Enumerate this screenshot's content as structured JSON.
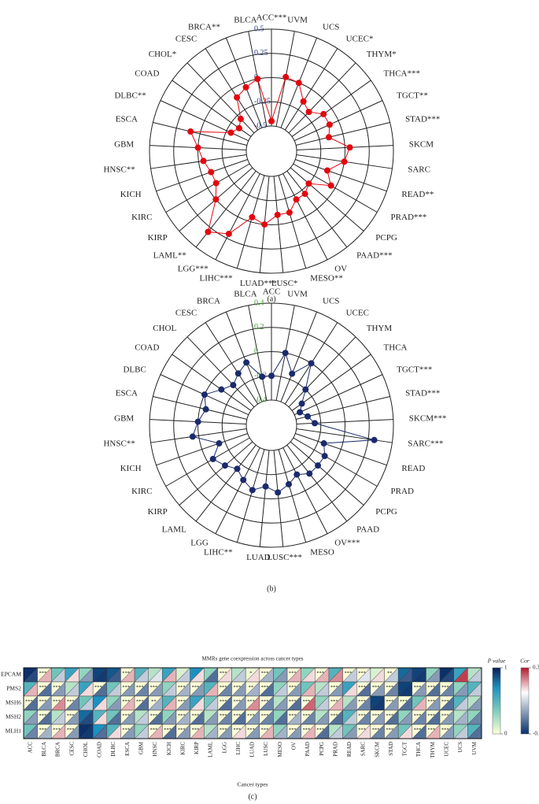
{
  "chart_data": [
    {
      "type": "radar",
      "panel_label": "(a)",
      "color": "#e3060f",
      "tick_color": "#2b3a8c",
      "categories": [
        "ACC***",
        "UVM",
        "UCS",
        "UCEC*",
        "THYM*",
        "THCA***",
        "TGCT**",
        "STAD***",
        "SKCM",
        "SARC",
        "READ**",
        "PRAD***",
        "PCPG",
        "PAAD***",
        "OV",
        "MESO**",
        "LUSC*",
        "LUAD***",
        "LIHC***",
        "LGG***",
        "LAML**",
        "KIRP",
        "KIRC",
        "KICH",
        "HNSC**",
        "GBM",
        "ESCA",
        "DLBC**",
        "COAD",
        "CHOL*",
        "CESC",
        "BRCA**",
        "BLCA"
      ],
      "values": [
        -0.45,
        0.02,
        0.0,
        -0.15,
        -0.2,
        -0.1,
        -0.1,
        -0.15,
        0.05,
        0.0,
        -0.15,
        -0.05,
        -0.25,
        -0.2,
        -0.2,
        -0.1,
        -0.1,
        0.0,
        -0.05,
        0.2,
        0.3,
        0.0,
        -0.1,
        -0.1,
        -0.05,
        0.0,
        0.1,
        -0.3,
        -0.35,
        -0.3,
        -0.1,
        -0.05,
        0.0
      ],
      "rlim": [
        -0.5,
        0.5
      ],
      "rticks": [
        -0.5,
        -0.25,
        0,
        0.25,
        0.5
      ]
    },
    {
      "type": "radar",
      "panel_label": "(b)",
      "color": "#1a2a6c",
      "tick_color": "#3a9a2a",
      "categories": [
        "ACC",
        "UVM",
        "UCS",
        "UCEC",
        "THYM",
        "THCA",
        "TGCT***",
        "STAD***",
        "SKCM***",
        "SARC***",
        "READ",
        "PRAD",
        "PCPG",
        "PAAD",
        "OV***",
        "MESO",
        "LUSC***",
        "LUAD",
        "LIHC**",
        "LGG",
        "LAML",
        "KIRP",
        "KIRC",
        "KICH",
        "HNSC**",
        "GBM",
        "ESCA",
        "DLBC",
        "COAD",
        "CHOL",
        "CESC",
        "BRCA",
        "BLCA"
      ],
      "values": [
        -0.2,
        0.0,
        -0.15,
        0.0,
        -0.2,
        -0.3,
        -0.35,
        -0.3,
        -0.25,
        0.25,
        -0.15,
        -0.1,
        -0.1,
        -0.1,
        -0.15,
        -0.1,
        -0.05,
        -0.1,
        -0.05,
        -0.1,
        -0.15,
        -0.1,
        -0.05,
        -0.15,
        0.05,
        0.0,
        -0.05,
        0.0,
        -0.1,
        -0.15,
        -0.1,
        -0.05,
        -0.2
      ],
      "rlim": [
        -0.4,
        0.4
      ],
      "rticks": [
        -0.4,
        -0.2,
        0,
        0.2,
        0.4
      ]
    },
    {
      "type": "heatmap",
      "panel_label": "(c)",
      "title": "MMRs gene coexpression across cancer types",
      "xlabel": "Cancer types",
      "categories": [
        "ACC",
        "BLCA",
        "BRCA",
        "CESC",
        "CHOL",
        "COAD",
        "DLBC",
        "ESCA",
        "GBM",
        "HNSC",
        "KICH",
        "KIRC",
        "KIRP",
        "LAML",
        "LGG",
        "LIHC",
        "LUAD",
        "LUSC",
        "MESO",
        "OV",
        "PAAD",
        "PCPG",
        "PRAD",
        "READ",
        "SARC",
        "SKCM",
        "STAD",
        "TGCT",
        "THCA",
        "THYM",
        "UCEC",
        "UCS",
        "UVM"
      ],
      "rows": [
        "EPCAM",
        "PMS2",
        "MSH6",
        "MSH2",
        "MLH1"
      ],
      "pvalue_title": "P value",
      "pvalue_lim": [
        0,
        1
      ],
      "pvalue_ticks": [
        0,
        1
      ],
      "cor_title": "Cor",
      "cor_lim": [
        -0.5,
        0.3
      ],
      "cor_ticks": [
        -0.5,
        0.3
      ],
      "pvalue": [
        [
          0.95,
          0.01,
          0.4,
          0.6,
          0.3,
          0.9,
          0.85,
          0.01,
          0.5,
          0.2,
          0.6,
          0.1,
          0.7,
          0.3,
          0.01,
          0.2,
          0.05,
          0.01,
          0.4,
          0.01,
          0.3,
          0.01,
          0.5,
          0.01,
          0.01,
          0.1,
          0.02,
          0.8,
          0.9,
          0.3,
          0.95,
          0.6,
          0.2
        ],
        [
          0.5,
          0.01,
          0.01,
          0.2,
          0.6,
          0.01,
          0.4,
          0.01,
          0.01,
          0.01,
          0.3,
          0.01,
          0.01,
          0.5,
          0.01,
          0.01,
          0.02,
          0.01,
          0.3,
          0.01,
          0.4,
          0.2,
          0.01,
          0.6,
          0.01,
          0.01,
          0.01,
          0.9,
          0.01,
          0.01,
          0.01,
          0.3,
          0.5
        ],
        [
          0.01,
          0.01,
          0.01,
          0.01,
          0.4,
          0.7,
          0.3,
          0.01,
          0.01,
          0.02,
          0.5,
          0.01,
          0.6,
          0.4,
          0.01,
          0.01,
          0.01,
          0.01,
          0.2,
          0.01,
          0.01,
          0.3,
          0.01,
          0.2,
          0.01,
          0.9,
          0.01,
          0.01,
          0.4,
          0.01,
          0.01,
          0.5,
          0.2
        ],
        [
          0.3,
          0.01,
          0.2,
          0.01,
          0.8,
          0.5,
          0.4,
          0.01,
          0.2,
          0.01,
          0.3,
          0.01,
          0.01,
          0.2,
          0.01,
          0.01,
          0.01,
          0.01,
          0.3,
          0.01,
          0.01,
          0.2,
          0.01,
          0.5,
          0.01,
          0.01,
          0.01,
          0.3,
          0.01,
          0.01,
          0.01,
          0.2,
          0.3
        ],
        [
          0.4,
          0.01,
          0.01,
          0.01,
          0.95,
          0.7,
          0.5,
          0.01,
          0.3,
          0.01,
          0.01,
          0.01,
          0.01,
          0.2,
          0.01,
          0.01,
          0.01,
          0.01,
          0.3,
          0.01,
          0.01,
          0.01,
          0.2,
          0.4,
          0.01,
          0.01,
          0.01,
          0.4,
          0.01,
          0.01,
          0.01,
          0.3,
          0.5
        ]
      ],
      "cor": [
        [
          -0.4,
          0.1,
          -0.1,
          0.05,
          -0.2,
          -0.45,
          -0.35,
          0.1,
          -0.1,
          -0.05,
          0.1,
          -0.1,
          0.05,
          -0.3,
          0.05,
          -0.1,
          0.05,
          -0.15,
          -0.2,
          0.1,
          0.05,
          0.1,
          0.15,
          -0.1,
          -0.05,
          0.05,
          -0.1,
          -0.35,
          -0.45,
          -0.2,
          -0.4,
          0.25,
          -0.1
        ],
        [
          0.1,
          -0.3,
          -0.2,
          -0.1,
          0.05,
          -0.3,
          -0.1,
          -0.2,
          -0.25,
          -0.2,
          -0.1,
          -0.15,
          -0.2,
          0.1,
          -0.25,
          -0.2,
          -0.15,
          -0.3,
          -0.1,
          -0.2,
          0.1,
          -0.1,
          -0.2,
          0.05,
          -0.3,
          -0.2,
          -0.25,
          -0.45,
          -0.2,
          -0.3,
          -0.25,
          -0.2,
          -0.1
        ],
        [
          -0.3,
          -0.2,
          0.15,
          -0.25,
          -0.1,
          0.05,
          -0.2,
          0.1,
          -0.3,
          -0.15,
          0.1,
          -0.2,
          0.05,
          -0.1,
          -0.3,
          -0.2,
          0.15,
          -0.25,
          -0.2,
          -0.3,
          0.2,
          -0.1,
          0.1,
          -0.2,
          -0.25,
          -0.45,
          -0.2,
          -0.3,
          0.1,
          -0.2,
          -0.3,
          -0.1,
          -0.2
        ],
        [
          -0.2,
          -0.3,
          -0.1,
          -0.2,
          -0.4,
          0.05,
          -0.3,
          -0.2,
          -0.1,
          -0.3,
          -0.2,
          -0.15,
          -0.3,
          -0.2,
          -0.25,
          -0.3,
          -0.2,
          -0.25,
          -0.3,
          -0.15,
          -0.25,
          -0.2,
          -0.3,
          -0.1,
          -0.25,
          -0.2,
          -0.3,
          -0.2,
          -0.25,
          -0.3,
          -0.2,
          -0.15,
          -0.25
        ],
        [
          -0.25,
          -0.15,
          0.1,
          -0.2,
          -0.45,
          -0.3,
          0.05,
          -0.2,
          -0.1,
          0.1,
          -0.3,
          -0.2,
          0.1,
          -0.15,
          -0.2,
          0.05,
          -0.2,
          0.1,
          -0.15,
          -0.2,
          0.1,
          -0.3,
          -0.1,
          -0.2,
          0.05,
          -0.25,
          -0.2,
          0.05,
          -0.3,
          0.1,
          -0.2,
          -0.1,
          -0.3
        ]
      ],
      "stars": [
        [
          null,
          "***",
          null,
          null,
          null,
          null,
          null,
          "***",
          null,
          null,
          null,
          null,
          null,
          null,
          "***",
          null,
          "*",
          "***",
          null,
          "***",
          null,
          "***",
          null,
          "***",
          "***",
          null,
          "**",
          null,
          null,
          null,
          null,
          null,
          null
        ],
        [
          null,
          "***",
          "***",
          null,
          null,
          "***",
          null,
          "***",
          "***",
          "***",
          null,
          "***",
          "***",
          null,
          "***",
          "***",
          "**",
          "***",
          null,
          "***",
          null,
          null,
          "***",
          null,
          "***",
          "***",
          "***",
          null,
          "***",
          "***",
          "***",
          null,
          null
        ],
        [
          "***",
          "***",
          "***",
          "***",
          null,
          null,
          null,
          "***",
          "***",
          "**",
          null,
          "***",
          null,
          null,
          "***",
          "***",
          "***",
          "***",
          null,
          "***",
          "***",
          null,
          "***",
          null,
          "***",
          null,
          "***",
          "***",
          null,
          "***",
          "***",
          null,
          null
        ],
        [
          null,
          "***",
          null,
          "***",
          null,
          null,
          null,
          "***",
          null,
          "***",
          null,
          "***",
          "***",
          null,
          "***",
          "***",
          "***",
          "***",
          null,
          "***",
          "***",
          null,
          "***",
          null,
          "***",
          "***",
          "***",
          null,
          "***",
          "***",
          "***",
          null,
          null
        ],
        [
          null,
          "***",
          "***",
          "***",
          null,
          null,
          null,
          "***",
          null,
          "***",
          "***",
          "***",
          "***",
          null,
          "***",
          "***",
          "***",
          "***",
          null,
          "***",
          "***",
          "***",
          null,
          null,
          "***",
          "***",
          "***",
          null,
          "***",
          "***",
          "***",
          null,
          null
        ]
      ]
    }
  ]
}
